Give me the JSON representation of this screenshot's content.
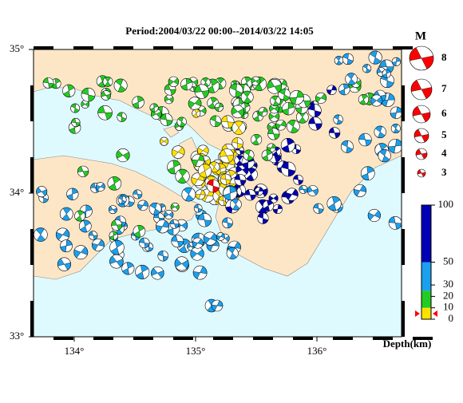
{
  "title": "Period:2004/03/22 00:00--2014/03/22 14:05",
  "lat_ticks": [
    {
      "value": 35,
      "label": "35°"
    },
    {
      "value": 34,
      "label": "34°"
    },
    {
      "value": 33,
      "label": "33°"
    }
  ],
  "lon_ticks": [
    {
      "value": 134,
      "label": "134°"
    },
    {
      "value": 135,
      "label": "135°"
    },
    {
      "value": 136,
      "label": "136°"
    }
  ],
  "magnitude_legend": {
    "title": "M",
    "values": [
      8,
      7,
      6,
      5,
      4,
      3
    ]
  },
  "depth_scale": {
    "ticks": [
      100,
      50,
      30,
      20,
      10,
      0
    ],
    "label": "Depth(km)"
  }
}
